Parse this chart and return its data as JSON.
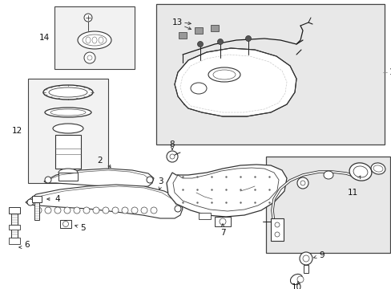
{
  "bg": "#ffffff",
  "lc": "#1a1a1a",
  "gray_fill": "#e8e8e8",
  "light_gray": "#f2f2f2",
  "part_gray": "#cccccc",
  "figsize": [
    4.89,
    3.6
  ],
  "dpi": 100
}
